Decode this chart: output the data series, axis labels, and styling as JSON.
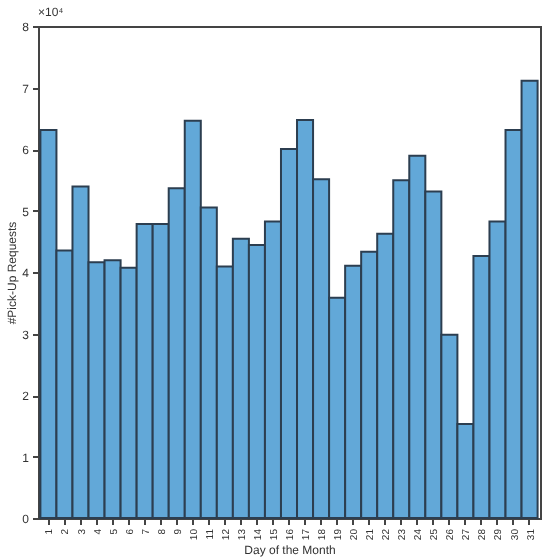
{
  "chart_data": {
    "type": "bar",
    "xlabel": "Day of the Month",
    "ylabel": "#Pick-Up Requests",
    "annotations": [
      "×10⁴"
    ],
    "categories": [
      "1",
      "2",
      "3",
      "4",
      "5",
      "6",
      "7",
      "8",
      "9",
      "10",
      "11",
      "12",
      "13",
      "14",
      "15",
      "16",
      "17",
      "18",
      "19",
      "20",
      "21",
      "22",
      "23",
      "24",
      "25",
      "26",
      "27",
      "28",
      "29",
      "30",
      "31"
    ],
    "values": [
      6.31,
      4.35,
      5.39,
      4.16,
      4.19,
      4.07,
      4.78,
      4.78,
      5.36,
      6.46,
      5.05,
      4.09,
      4.54,
      4.44,
      4.82,
      6.0,
      6.47,
      5.51,
      3.58,
      4.1,
      4.33,
      4.62,
      5.49,
      5.89,
      5.31,
      2.98,
      1.53,
      4.26,
      4.82,
      6.31,
      7.11
    ],
    "color": "#62a8d8",
    "ylim": [
      0,
      8
    ],
    "yticks": [
      0,
      1,
      2,
      3,
      4,
      5,
      6,
      7,
      8
    ],
    "grid": false
  }
}
